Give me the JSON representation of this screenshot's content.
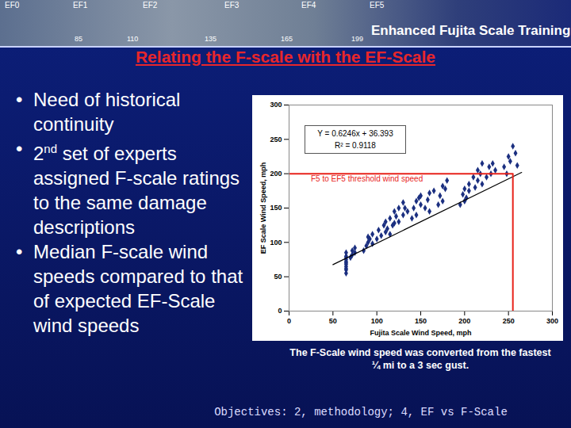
{
  "slide": {
    "banner": {
      "levels": [
        "EF0",
        "EF1",
        "EF2",
        "EF3",
        "EF4",
        "EF5"
      ],
      "thresholds": [
        85,
        110,
        135,
        165,
        199
      ],
      "title": "Enhanced Fujita Scale Training"
    },
    "title": "Relating the F-scale with the EF-Scale",
    "bullets": [
      "Need of historical continuity",
      "2nd set of experts assigned F-scale ratings to the same damage descriptions",
      "Median F-scale wind speeds compared to that of expected EF-Scale wind speeds"
    ],
    "caption": "The F-Scale wind speed was converted from the fastest ¼ mi to a 3 sec gust.",
    "footer": "Objectives: 2, methodology; 4, EF vs F-Scale"
  },
  "chart_data": {
    "type": "scatter",
    "xlabel": "Fujita Scale Wind Speed, mph",
    "ylabel": "EF Scale Wind Speed, mph",
    "xlim": [
      0,
      300
    ],
    "xticks": [
      0,
      50,
      100,
      150,
      200,
      250,
      300
    ],
    "ylim": [
      0,
      300
    ],
    "yticks": [
      0,
      50,
      100,
      150,
      200,
      250,
      300
    ],
    "grid": false,
    "annotations": [
      "Y = 0.6246x + 36.393",
      "R² = 0.9118",
      "F5 to EF5 threshold wind speed"
    ],
    "series": [
      {
        "type": "scatter",
        "marker": "diamond",
        "color": "#1b2f80",
        "x": [
          65,
          65,
          65,
          65,
          65,
          65,
          65,
          65,
          65,
          65,
          65,
          70,
          72,
          72,
          75,
          75,
          85,
          88,
          90,
          90,
          92,
          95,
          95,
          100,
          102,
          105,
          108,
          110,
          110,
          112,
          115,
          115,
          118,
          120,
          120,
          122,
          125,
          125,
          130,
          130,
          132,
          135,
          140,
          142,
          145,
          145,
          148,
          150,
          150,
          155,
          158,
          160,
          160,
          165,
          170,
          172,
          175,
          175,
          178,
          180,
          195,
          198,
          200,
          200,
          202,
          205,
          205,
          210,
          212,
          215,
          215,
          218,
          220,
          220,
          225,
          228,
          230,
          232,
          235,
          245,
          248,
          250,
          252,
          255,
          258,
          260
        ],
        "values": [
          55,
          60,
          62,
          65,
          68,
          70,
          72,
          75,
          78,
          80,
          85,
          78,
          82,
          88,
          85,
          92,
          88,
          95,
          100,
          108,
          105,
          98,
          112,
          105,
          118,
          110,
          125,
          115,
          130,
          120,
          112,
          135,
          125,
          128,
          145,
          138,
          130,
          150,
          140,
          158,
          150,
          145,
          135,
          150,
          140,
          160,
          165,
          155,
          168,
          150,
          162,
          145,
          172,
          175,
          155,
          168,
          160,
          182,
          178,
          190,
          155,
          170,
          160,
          178,
          165,
          175,
          185,
          195,
          180,
          190,
          205,
          200,
          185,
          215,
          195,
          210,
          200,
          215,
          205,
          210,
          200,
          225,
          218,
          240,
          230,
          212
        ]
      },
      {
        "type": "line",
        "color": "#000000",
        "x": [
          50,
          265
        ],
        "values": [
          67.6,
          201.9
        ]
      },
      {
        "type": "line",
        "color": "#e8231b",
        "x": [
          0,
          255,
          255
        ],
        "values": [
          200,
          200,
          0
        ]
      }
    ]
  }
}
